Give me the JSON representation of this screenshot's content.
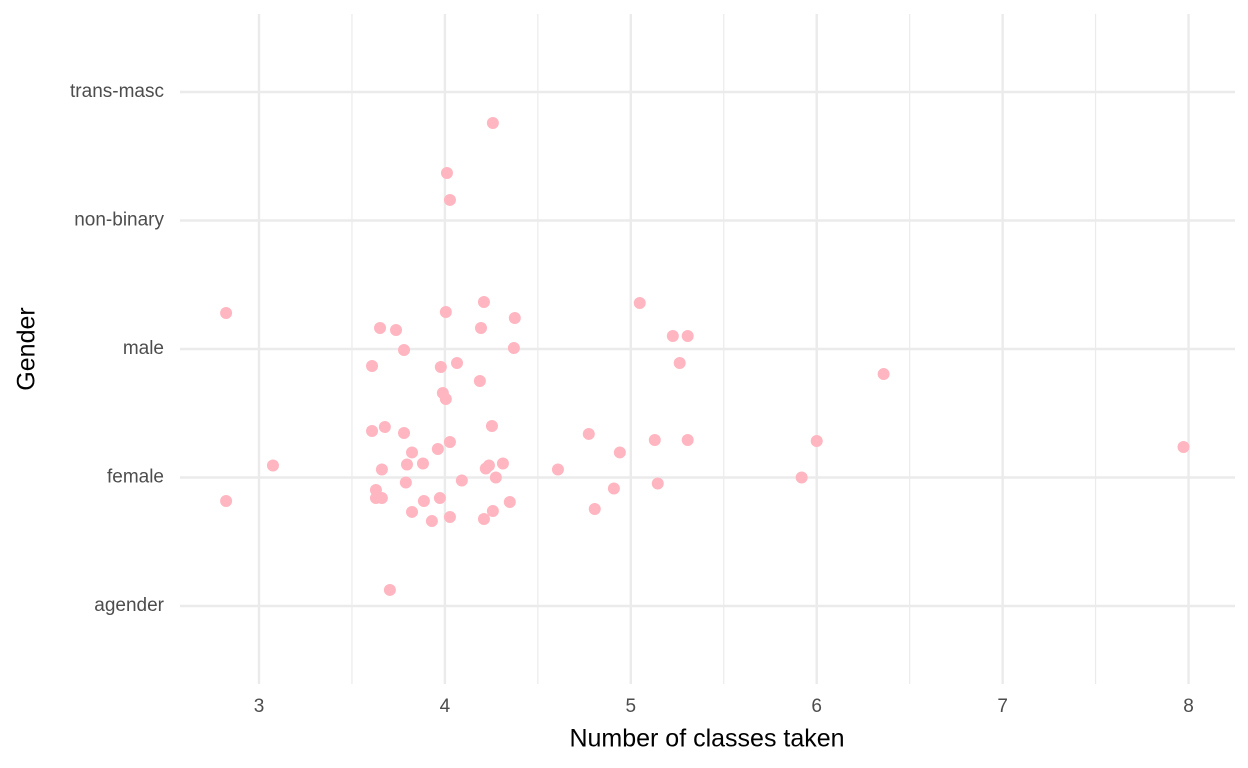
{
  "chart_data": {
    "type": "scatter",
    "x_label": "Number of classes taken",
    "y_label": "Gender",
    "color": "#ffb6c1",
    "grid": true,
    "xlim": [
      2.575,
      8.25
    ],
    "ylim": [
      0.393,
      5.607
    ],
    "xticks": [
      3,
      4,
      5,
      6,
      7,
      8
    ],
    "x_minor_grid": [
      3.5,
      4.5,
      5.5,
      6.5,
      7.5
    ],
    "yticks": [
      {
        "value": 1,
        "label": "agender"
      },
      {
        "value": 2,
        "label": "female"
      },
      {
        "value": 3,
        "label": "male"
      },
      {
        "value": 4,
        "label": "non-binary"
      },
      {
        "value": 5,
        "label": "trans-masc"
      }
    ],
    "x": [
      4.258,
      4.011,
      4.027,
      2.823,
      4.21,
      5.048,
      4.005,
      4.376,
      3.651,
      3.737,
      4.194,
      5.226,
      5.306,
      3.78,
      4.371,
      3.608,
      3.978,
      4.065,
      5.263,
      6.36,
      4.188,
      3.989,
      4.005,
      3.608,
      3.677,
      3.78,
      4.253,
      4.774,
      4.027,
      3.962,
      5.129,
      5.306,
      6.0,
      7.973,
      4.941,
      3.823,
      3.075,
      3.882,
      3.796,
      3.661,
      4.237,
      4.22,
      4.312,
      4.608,
      4.274,
      4.091,
      3.79,
      5.919,
      4.909,
      5.145,
      3.629,
      2.823,
      3.629,
      3.661,
      3.887,
      3.973,
      4.349,
      3.823,
      4.258,
      4.806,
      3.93,
      4.027,
      4.21,
      3.704
    ],
    "values": [
      4.759,
      4.37,
      4.16,
      3.28,
      3.366,
      3.358,
      3.288,
      3.241,
      3.163,
      3.148,
      3.163,
      3.101,
      3.101,
      2.992,
      3.008,
      2.868,
      2.86,
      2.891,
      2.891,
      2.805,
      2.751,
      2.658,
      2.611,
      2.362,
      2.393,
      2.346,
      2.401,
      2.339,
      2.276,
      2.222,
      2.292,
      2.292,
      2.284,
      2.237,
      2.195,
      2.195,
      2.093,
      2.109,
      2.101,
      2.062,
      2.093,
      2.07,
      2.109,
      2.062,
      2.0,
      1.977,
      1.961,
      2.0,
      1.914,
      1.953,
      1.903,
      1.817,
      1.84,
      1.84,
      1.817,
      1.84,
      1.809,
      1.732,
      1.739,
      1.755,
      1.661,
      1.693,
      1.677,
      1.125
    ]
  }
}
